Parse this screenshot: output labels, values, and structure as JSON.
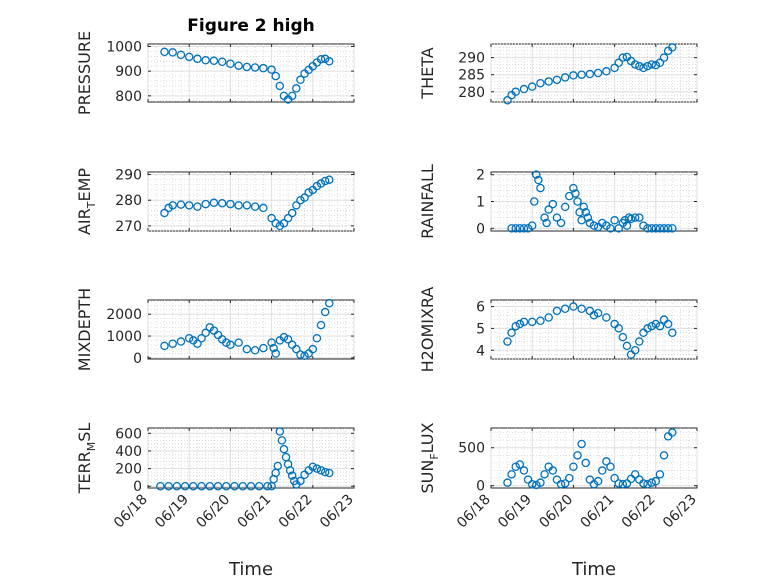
{
  "figure": {
    "title": "Figure 2 high",
    "xlabel": "Time",
    "marker_color": "#0072bd"
  },
  "chart_data": [
    {
      "type": "scatter",
      "name": "PRESSURE",
      "ylabel": "PRESSURE",
      "ylabel_sub": "",
      "title": "Figure 2 high",
      "ylim": [
        775,
        1010
      ],
      "yticks": [
        800,
        900,
        1000
      ],
      "xlim": [
        0,
        5
      ],
      "grid": true,
      "minor_grid": true,
      "x": [
        0.4,
        0.6,
        0.8,
        1.0,
        1.2,
        1.4,
        1.6,
        1.8,
        2.0,
        2.2,
        2.4,
        2.6,
        2.8,
        3.0,
        3.1,
        3.2,
        3.3,
        3.4,
        3.5,
        3.6,
        3.7,
        3.8,
        3.9,
        4.0,
        4.1,
        4.2,
        4.3,
        4.4
      ],
      "y": [
        978,
        976,
        966,
        958,
        950,
        944,
        942,
        938,
        930,
        922,
        917,
        915,
        912,
        906,
        880,
        840,
        800,
        785,
        800,
        830,
        865,
        890,
        905,
        920,
        935,
        948,
        950,
        940
      ]
    },
    {
      "type": "scatter",
      "name": "THETA",
      "ylabel": "THETA",
      "ylabel_sub": "",
      "ylim": [
        277,
        294
      ],
      "yticks": [
        280,
        285,
        290
      ],
      "xlim": [
        0,
        5
      ],
      "grid": true,
      "minor_grid": true,
      "x": [
        0.4,
        0.5,
        0.6,
        0.8,
        1.0,
        1.2,
        1.4,
        1.6,
        1.8,
        2.0,
        2.2,
        2.4,
        2.6,
        2.8,
        3.0,
        3.1,
        3.2,
        3.3,
        3.4,
        3.5,
        3.6,
        3.7,
        3.8,
        3.9,
        4.0,
        4.1,
        4.2,
        4.3,
        4.4
      ],
      "y": [
        277.5,
        279,
        280,
        280.8,
        281.5,
        282.5,
        283,
        283.5,
        284.2,
        284.8,
        285,
        285.2,
        285.5,
        286,
        287,
        288.5,
        290,
        290.2,
        289,
        288,
        287.5,
        287,
        287.5,
        288,
        287.8,
        288.5,
        290,
        292,
        293
      ]
    },
    {
      "type": "scatter",
      "name": "AIR_TEMP",
      "ylabel": "AIR",
      "ylabel_sub": "T",
      "ylabel_tail": "EMP",
      "ylim": [
        268,
        291
      ],
      "yticks": [
        270,
        280,
        290
      ],
      "xlim": [
        0,
        5
      ],
      "grid": true,
      "minor_grid": true,
      "x": [
        0.4,
        0.5,
        0.6,
        0.8,
        1.0,
        1.2,
        1.4,
        1.6,
        1.8,
        2.0,
        2.2,
        2.4,
        2.6,
        2.8,
        3.0,
        3.1,
        3.2,
        3.3,
        3.4,
        3.5,
        3.6,
        3.7,
        3.8,
        3.9,
        4.0,
        4.1,
        4.2,
        4.3,
        4.4
      ],
      "y": [
        275,
        277,
        278,
        278.3,
        278,
        277.5,
        278.5,
        279,
        278.8,
        278.5,
        278,
        278,
        277.5,
        277,
        273,
        271,
        270,
        271,
        273,
        275,
        278,
        280,
        281,
        283,
        284,
        285.5,
        286.5,
        287.5,
        288
      ]
    },
    {
      "type": "scatter",
      "name": "RAINFALL",
      "ylabel": "RAINFALL",
      "ylabel_sub": "",
      "ylim": [
        -0.1,
        2.1
      ],
      "yticks": [
        0,
        1,
        2
      ],
      "xlim": [
        0,
        5
      ],
      "grid": true,
      "minor_grid": true,
      "x": [
        0.5,
        0.6,
        0.7,
        0.8,
        0.9,
        1.0,
        1.05,
        1.1,
        1.15,
        1.2,
        1.3,
        1.35,
        1.4,
        1.5,
        1.6,
        1.7,
        1.8,
        1.9,
        2.0,
        2.05,
        2.1,
        2.15,
        2.2,
        2.25,
        2.3,
        2.35,
        2.4,
        2.5,
        2.6,
        2.7,
        2.8,
        2.9,
        3.0,
        3.1,
        3.2,
        3.25,
        3.3,
        3.35,
        3.4,
        3.5,
        3.6,
        3.7,
        3.8,
        3.9,
        4.0,
        4.1,
        4.2,
        4.3,
        4.4
      ],
      "y": [
        0,
        0,
        0,
        0,
        0,
        0.1,
        1.0,
        2.0,
        1.8,
        1.5,
        0.4,
        0.2,
        0.7,
        0.9,
        0.4,
        0.2,
        0.8,
        1.2,
        1.5,
        1.3,
        1.0,
        0.6,
        0.3,
        0.8,
        0.6,
        0.4,
        0.2,
        0.1,
        0.05,
        0.2,
        0.1,
        0,
        0.3,
        0,
        0.2,
        0.3,
        0.1,
        0.4,
        0.35,
        0.4,
        0.4,
        0.1,
        0,
        0,
        0,
        0,
        0,
        0,
        0
      ]
    },
    {
      "type": "scatter",
      "name": "MIXDEPTH",
      "ylabel": "MIXDEPTH",
      "ylabel_sub": "",
      "ylim": [
        -50,
        2650
      ],
      "yticks": [
        0,
        1000,
        2000
      ],
      "xlim": [
        0,
        5
      ],
      "grid": true,
      "minor_grid": true,
      "x": [
        0.4,
        0.6,
        0.8,
        1.0,
        1.1,
        1.2,
        1.3,
        1.4,
        1.5,
        1.6,
        1.7,
        1.8,
        1.9,
        2.0,
        2.2,
        2.4,
        2.6,
        2.8,
        3.0,
        3.05,
        3.1,
        3.2,
        3.3,
        3.4,
        3.5,
        3.6,
        3.7,
        3.8,
        3.9,
        4.0,
        4.1,
        4.2,
        4.3,
        4.4
      ],
      "y": [
        550,
        650,
        750,
        900,
        800,
        650,
        900,
        1150,
        1400,
        1250,
        1050,
        850,
        700,
        600,
        700,
        400,
        350,
        450,
        700,
        450,
        200,
        800,
        950,
        850,
        600,
        400,
        150,
        100,
        200,
        400,
        900,
        1500,
        2100,
        2500
      ]
    },
    {
      "type": "scatter",
      "name": "H2OMIXRA",
      "ylabel": "H2OMIXRA",
      "ylabel_sub": "",
      "ylim": [
        3.6,
        6.3
      ],
      "yticks": [
        4,
        5,
        6
      ],
      "xlim": [
        0,
        5
      ],
      "grid": true,
      "minor_grid": true,
      "x": [
        0.4,
        0.5,
        0.6,
        0.7,
        0.8,
        1.0,
        1.2,
        1.4,
        1.6,
        1.8,
        2.0,
        2.2,
        2.4,
        2.5,
        2.6,
        2.8,
        3.0,
        3.1,
        3.2,
        3.3,
        3.4,
        3.5,
        3.6,
        3.7,
        3.8,
        3.9,
        4.0,
        4.1,
        4.2,
        4.3,
        4.4
      ],
      "y": [
        4.4,
        4.8,
        5.1,
        5.2,
        5.3,
        5.3,
        5.35,
        5.5,
        5.8,
        5.9,
        6.0,
        5.9,
        5.8,
        5.6,
        5.7,
        5.5,
        5.2,
        5.0,
        4.6,
        4.2,
        3.8,
        4.0,
        4.4,
        4.8,
        5.0,
        5.1,
        5.2,
        5.1,
        5.4,
        5.2,
        4.8
      ]
    },
    {
      "type": "scatter",
      "name": "TERR_MSL",
      "ylabel": "TERR",
      "ylabel_sub": "M",
      "ylabel_tail": "SL",
      "ylim": [
        -20,
        660
      ],
      "yticks": [
        0,
        200,
        400,
        600
      ],
      "xlim": [
        0,
        5
      ],
      "grid": true,
      "minor_grid": true,
      "xticklabels": [
        "06/18",
        "06/19",
        "06/20",
        "06/21",
        "06/22",
        "06/23"
      ],
      "x": [
        0.3,
        0.5,
        0.7,
        0.9,
        1.1,
        1.3,
        1.5,
        1.7,
        1.9,
        2.1,
        2.3,
        2.5,
        2.7,
        2.9,
        3.0,
        3.05,
        3.1,
        3.15,
        3.2,
        3.25,
        3.3,
        3.35,
        3.4,
        3.45,
        3.5,
        3.55,
        3.6,
        3.7,
        3.8,
        3.9,
        4.0,
        4.1,
        4.2,
        4.3,
        4.4
      ],
      "y": [
        0,
        0,
        0,
        0,
        0,
        0,
        0,
        0,
        0,
        0,
        0,
        0,
        0,
        0,
        0,
        80,
        150,
        230,
        620,
        520,
        420,
        330,
        250,
        180,
        120,
        60,
        20,
        60,
        130,
        180,
        220,
        200,
        180,
        160,
        150
      ]
    },
    {
      "type": "scatter",
      "name": "SUN_FLUX",
      "ylabel": "SUN",
      "ylabel_sub": "F",
      "ylabel_tail": "LUX",
      "ylim": [
        -30,
        760
      ],
      "yticks": [
        0,
        500
      ],
      "xlim": [
        0,
        5
      ],
      "grid": true,
      "minor_grid": true,
      "xticklabels": [
        "06/18",
        "06/19",
        "06/20",
        "06/21",
        "06/22",
        "06/23"
      ],
      "x": [
        0.4,
        0.5,
        0.6,
        0.7,
        0.8,
        0.9,
        1.0,
        1.1,
        1.2,
        1.3,
        1.4,
        1.5,
        1.6,
        1.7,
        1.8,
        1.9,
        2.0,
        2.1,
        2.2,
        2.3,
        2.4,
        2.5,
        2.6,
        2.7,
        2.8,
        2.9,
        3.0,
        3.1,
        3.2,
        3.3,
        3.4,
        3.5,
        3.6,
        3.7,
        3.8,
        3.9,
        4.0,
        4.1,
        4.2,
        4.3,
        4.4
      ],
      "y": [
        40,
        150,
        250,
        280,
        200,
        80,
        20,
        10,
        40,
        150,
        250,
        200,
        80,
        20,
        30,
        100,
        250,
        400,
        550,
        300,
        80,
        20,
        60,
        200,
        320,
        250,
        100,
        30,
        20,
        30,
        90,
        150,
        80,
        30,
        20,
        40,
        60,
        150,
        400,
        650,
        700
      ]
    }
  ]
}
